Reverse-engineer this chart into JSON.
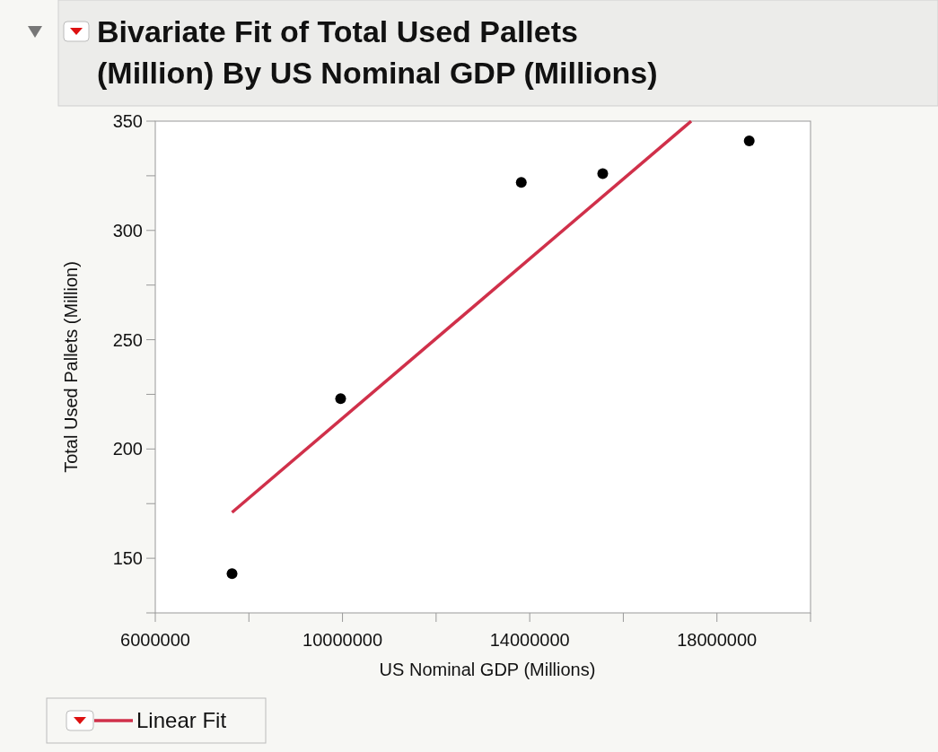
{
  "chart_data": {
    "type": "scatter",
    "title": "Bivariate Fit of Total Used Pallets (Million) By US Nominal GDP (Millions)",
    "xlabel": "US Nominal GDP (Millions)",
    "ylabel": "Total Used Pallets (Million)",
    "xlim": [
      6000000,
      20000000
    ],
    "ylim": [
      125,
      350
    ],
    "xticks": [
      {
        "value": 6000000,
        "label": "6000000"
      },
      {
        "value": 8000000,
        "label": null
      },
      {
        "value": 10000000,
        "label": "10000000"
      },
      {
        "value": 12000000,
        "label": null
      },
      {
        "value": 14000000,
        "label": "14000000"
      },
      {
        "value": 16000000,
        "label": null
      },
      {
        "value": 18000000,
        "label": "18000000"
      },
      {
        "value": 20000000,
        "label": null
      }
    ],
    "yticks": [
      {
        "value": 125,
        "label": null
      },
      150,
      {
        "value": 175,
        "label": null
      },
      200,
      {
        "value": 225,
        "label": null
      },
      250,
      {
        "value": 275,
        "label": null
      },
      300,
      {
        "value": 325,
        "label": null
      },
      350
    ],
    "legend": "bottom left",
    "series": [
      {
        "marker": "circle",
        "color": "#000000",
        "x": [
          7640000,
          9960000,
          13820000,
          15560000,
          18690000
        ],
        "values": [
          143,
          223,
          322,
          326,
          341
        ]
      },
      {
        "type": "line",
        "marker": "none",
        "name": "Linear Fit",
        "color": "#d0304a",
        "x": [
          7640000,
          17450000
        ],
        "values": [
          171,
          350
        ]
      }
    ]
  }
}
